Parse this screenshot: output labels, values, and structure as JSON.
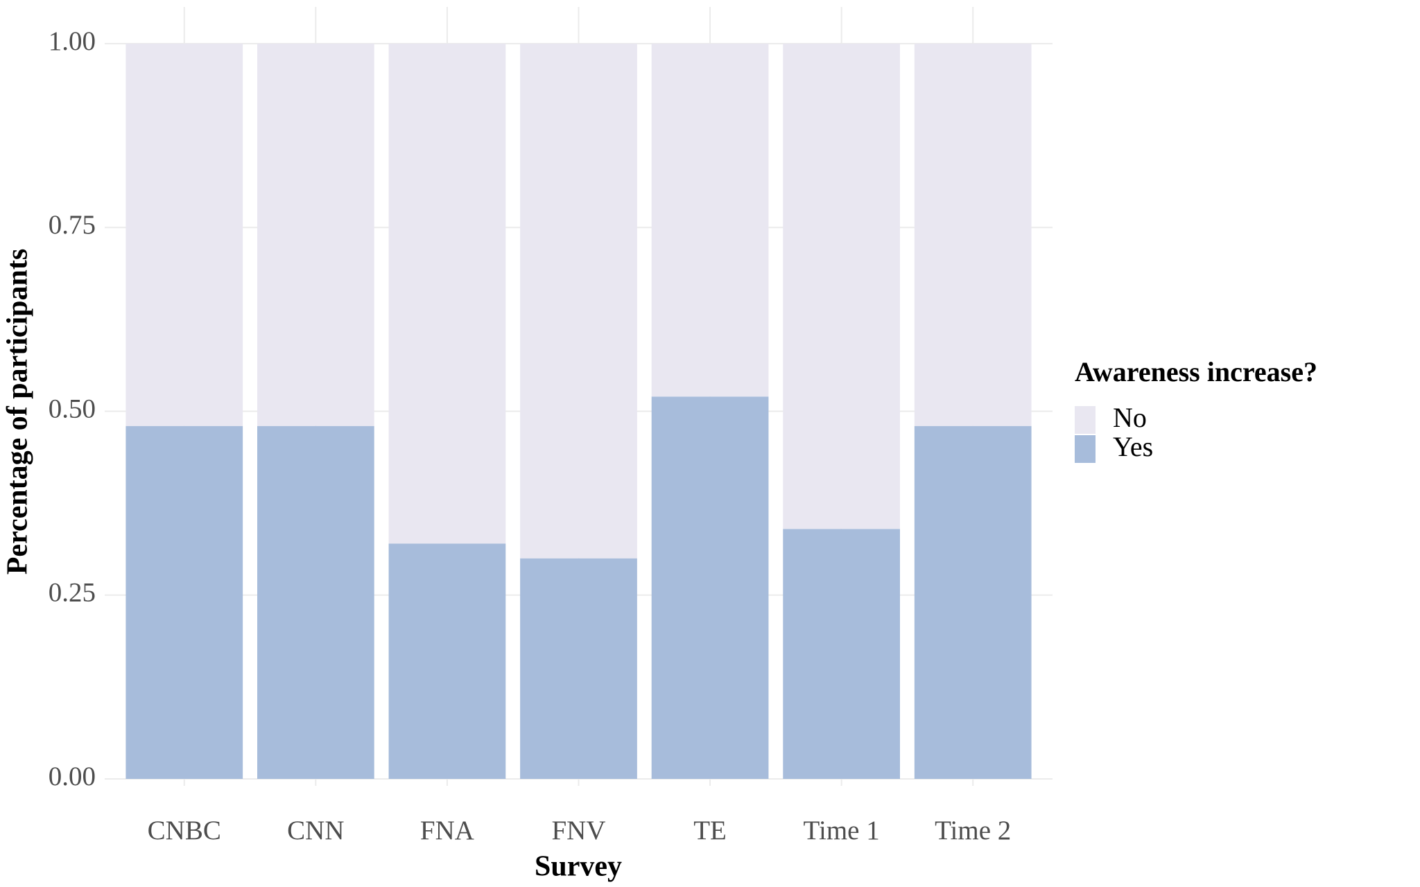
{
  "chart_data": {
    "type": "bar",
    "stacked": true,
    "x_label": "Survey",
    "y_label": "Percentage of participants",
    "legend_title": "Awareness increase?",
    "legend": "right",
    "grid": true,
    "categories": [
      "CNBC",
      "CNN",
      "FNA",
      "FNV",
      "TE",
      "Time 1",
      "Time 2"
    ],
    "series": [
      {
        "name": "No",
        "color": "#e9e7f1",
        "values": [
          0.52,
          0.52,
          0.68,
          0.7,
          0.48,
          0.66,
          0.52
        ]
      },
      {
        "name": "Yes",
        "color": "#a7bcdb",
        "values": [
          0.48,
          0.48,
          0.32,
          0.3,
          0.52,
          0.34,
          0.48
        ]
      }
    ],
    "ylim": [
      0,
      1
    ],
    "yticks": [
      {
        "value": 0,
        "label": "0.00"
      },
      {
        "value": 0.25,
        "label": "0.25"
      },
      {
        "value": 0.5,
        "label": "0.50"
      },
      {
        "value": 0.75,
        "label": "0.75"
      },
      {
        "value": 1,
        "label": "1.00"
      }
    ]
  }
}
